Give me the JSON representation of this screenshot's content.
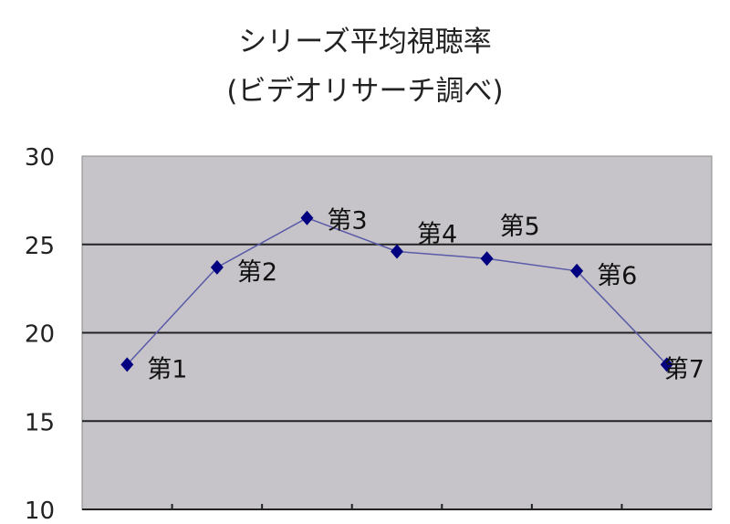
{
  "chart_data": {
    "type": "line",
    "title": [
      "シリーズ平均視聴率",
      "(ビデオリサーチ調べ)"
    ],
    "xlabel": "",
    "ylabel": "",
    "categories": [
      "第1",
      "第2",
      "第3",
      "第4",
      "第5",
      "第6",
      "第7"
    ],
    "series": [
      {
        "values": [
          18.2,
          23.7,
          26.5,
          24.6,
          24.2,
          23.5,
          18.2
        ]
      }
    ],
    "ylim": [
      10,
      30
    ],
    "yticks": [
      "10",
      "15",
      "20",
      "25",
      "30"
    ],
    "grid": true,
    "legend": "none",
    "colors": {
      "line": "#5a5aa8",
      "marker": "#000080",
      "plot_bg": "#c6c4c8",
      "grid": "#222222"
    }
  }
}
